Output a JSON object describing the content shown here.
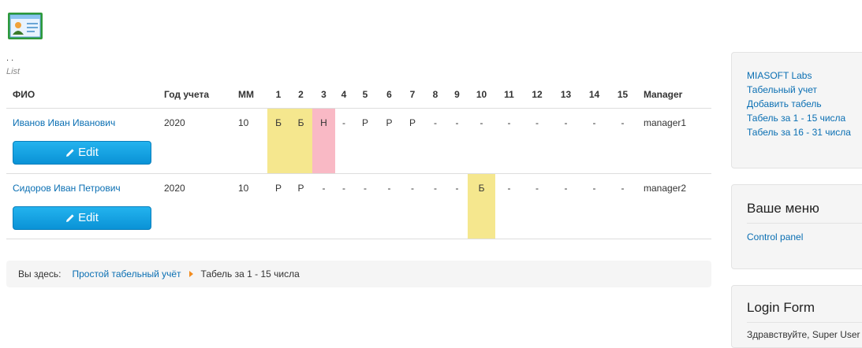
{
  "header": {
    "dots": ". .",
    "subtitle": "List"
  },
  "table": {
    "columns": [
      "ФИО",
      "Год учета",
      "ММ",
      "1",
      "2",
      "3",
      "4",
      "5",
      "6",
      "7",
      "8",
      "9",
      "10",
      "11",
      "12",
      "13",
      "14",
      "15",
      "Manager"
    ],
    "rows": [
      {
        "name": "Иванов Иван Иванович",
        "year": "2020",
        "month": "10",
        "days": [
          "Б",
          "Б",
          "Н",
          "-",
          "Р",
          "Р",
          "Р",
          "-",
          "-",
          "-",
          "-",
          "-",
          "-",
          "-",
          "-"
        ],
        "manager": "manager1",
        "edit_label": "Edit"
      },
      {
        "name": "Сидоров Иван Петрович",
        "year": "2020",
        "month": "10",
        "days": [
          "Р",
          "Р",
          "-",
          "-",
          "-",
          "-",
          "-",
          "-",
          "-",
          "Б",
          "-",
          "-",
          "-",
          "-",
          "-"
        ],
        "manager": "manager2",
        "edit_label": "Edit"
      }
    ]
  },
  "breadcrumb": {
    "label": "Вы здесь:",
    "link": "Простой табельный учёт",
    "current": "Табель за 1 - 15 числа"
  },
  "sidebar": {
    "menu_items": [
      "MIASOFT Labs",
      "Табельный учет",
      "Добавить табель",
      "Табель за 1 - 15 числа",
      "Табель за 16 - 31 числа"
    ],
    "user_menu_title": "Ваше меню",
    "user_menu_items": [
      "Control panel"
    ],
    "login_title": "Login Form",
    "login_greeting": "Здравствуйте, Super User"
  },
  "colors": {
    "accent": "#0a92d6",
    "link": "#0a6fb3",
    "sick": "#f5e78e",
    "absent": "#f9b9c5",
    "breadcrumb_arrow": "#f28c1f"
  }
}
